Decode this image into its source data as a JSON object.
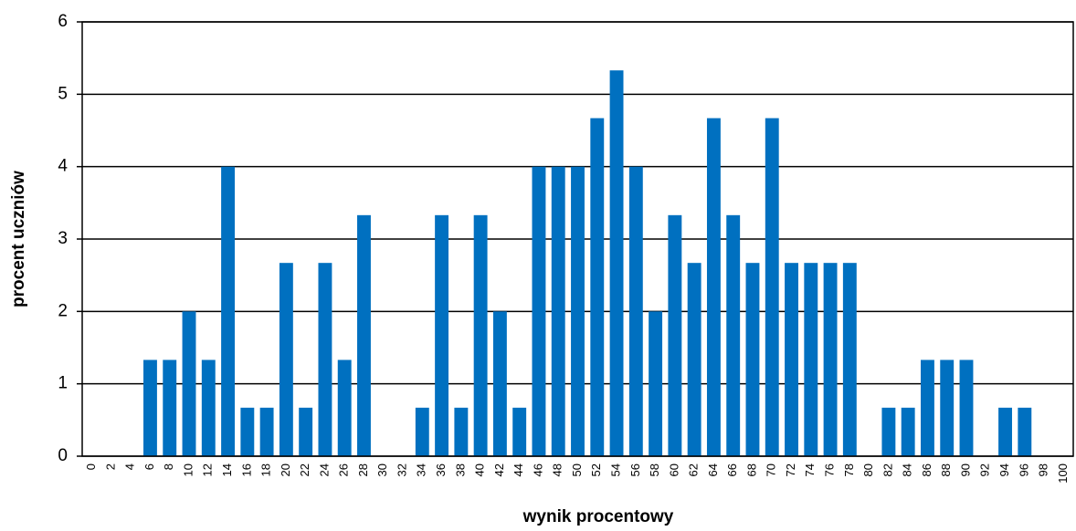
{
  "chart_data": {
    "type": "bar",
    "x_label": "wynik procentowy",
    "y_label": "procent uczniów",
    "categories": [
      "0",
      "2",
      "4",
      "6",
      "8",
      "10",
      "12",
      "14",
      "16",
      "18",
      "20",
      "22",
      "24",
      "26",
      "28",
      "30",
      "32",
      "34",
      "36",
      "38",
      "40",
      "42",
      "44",
      "46",
      "48",
      "50",
      "52",
      "54",
      "56",
      "58",
      "60",
      "62",
      "64",
      "66",
      "68",
      "70",
      "72",
      "74",
      "76",
      "78",
      "80",
      "82",
      "84",
      "86",
      "88",
      "90",
      "92",
      "94",
      "96",
      "98",
      "100"
    ],
    "values": [
      0,
      0,
      0,
      1.33,
      1.33,
      2,
      1.33,
      4,
      0.67,
      0.67,
      2.67,
      0.67,
      2.67,
      1.33,
      3.33,
      0,
      0,
      0.67,
      3.33,
      0.67,
      3.33,
      2,
      0.67,
      4,
      4,
      4,
      4.67,
      5.33,
      4,
      2,
      3.33,
      2.67,
      4.67,
      3.33,
      2.67,
      4.67,
      2.67,
      2.67,
      2.67,
      2.67,
      0,
      0.67,
      0.67,
      1.33,
      1.33,
      1.33,
      0,
      0.67,
      0.67,
      0,
      0
    ],
    "color": "#0070c0",
    "ylim": [
      0,
      6
    ],
    "yticks": [
      0,
      1,
      2,
      3,
      4,
      5,
      6
    ],
    "grid": true
  }
}
